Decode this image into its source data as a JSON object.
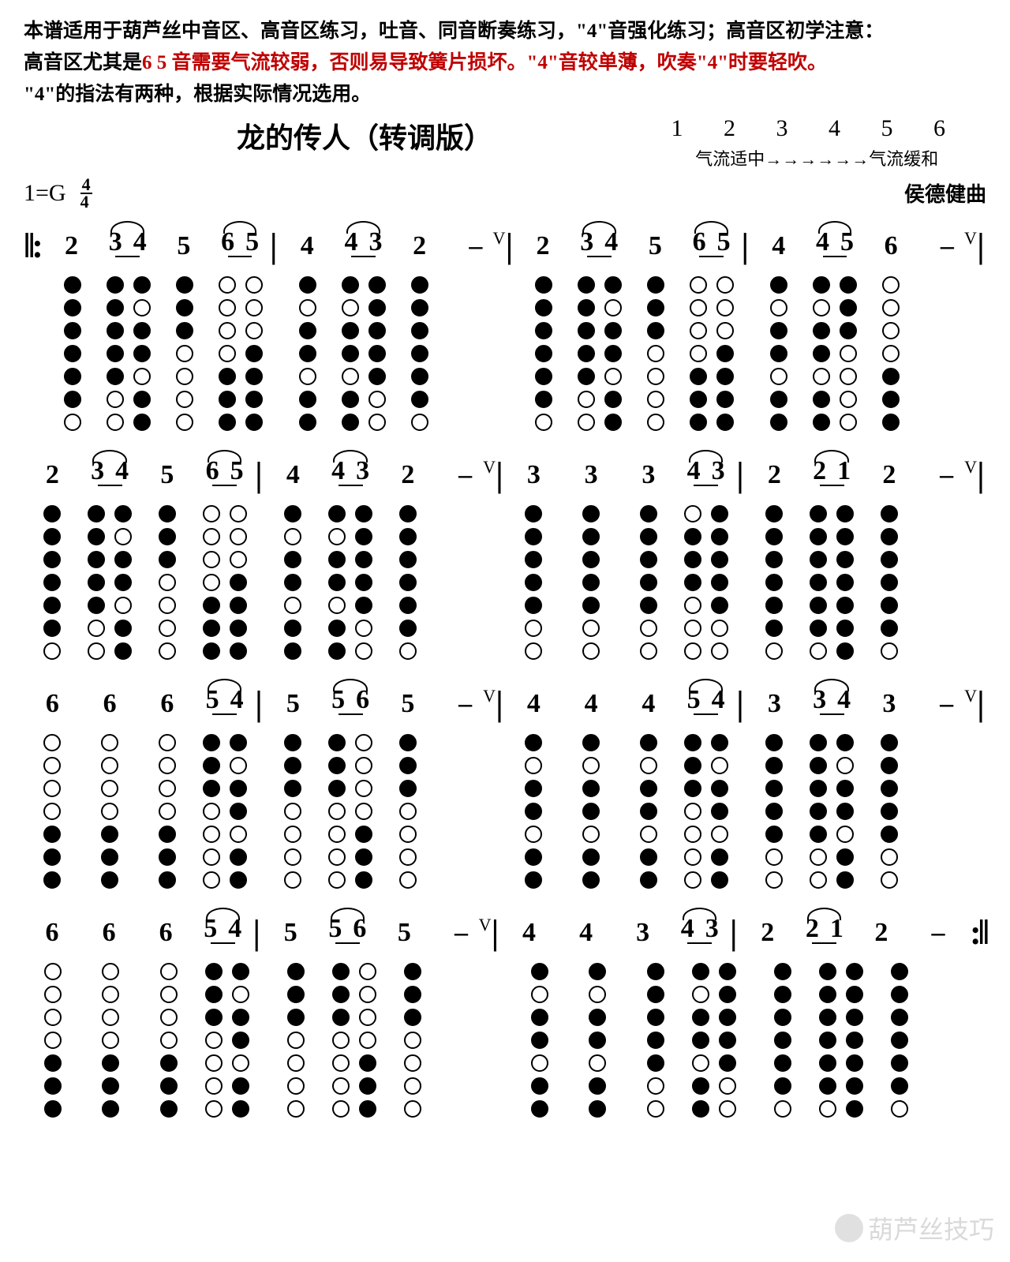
{
  "intro": {
    "line1a": "本谱适用于葫芦丝中音区、高音区练习，吐音、同音断奏练习，\"4\"音强化练习；高音区初学注意：",
    "line2_black1": "高音区尤其是",
    "line2_red": "6 5 音需要气流较弱，否则易导致簧片损坏。\"4\"音较单薄，吹奏\"4\"时要轻吹。",
    "line3": "\"4\"的指法有两种，根据实际情况选用。"
  },
  "title": "龙的传人（转调版）",
  "scale_nums": "1 2 3 4 5 6",
  "scale_text": "气流适中→→→→→→气流缓和",
  "key": "1=G",
  "time_top": "4",
  "time_bottom": "4",
  "composer": "侯德健曲",
  "repeat_start": "‖:",
  "repeat_end": ":‖",
  "bar": "|",
  "dash": "–",
  "breath": "V",
  "watermark": "葫芦丝技巧",
  "fingering_map": {
    "1": [
      1,
      1,
      1,
      1,
      1,
      1,
      1
    ],
    "2": [
      1,
      1,
      1,
      1,
      1,
      1,
      0
    ],
    "3": [
      1,
      1,
      1,
      1,
      1,
      0,
      0
    ],
    "4": [
      1,
      0,
      1,
      1,
      0,
      1,
      1
    ],
    "4b": [
      0,
      1,
      1,
      1,
      0,
      0,
      0
    ],
    "5": [
      1,
      1,
      1,
      0,
      0,
      0,
      0
    ],
    "5h": [
      0,
      0,
      0,
      1,
      1,
      1,
      1
    ],
    "6": [
      1,
      1,
      0,
      0,
      0,
      0,
      0
    ],
    "6h": [
      0,
      0,
      0,
      0,
      1,
      1,
      1
    ]
  },
  "lines": [
    {
      "start_repeat": true,
      "cells": [
        {
          "t": "n",
          "v": "2",
          "f": "2"
        },
        {
          "t": "p",
          "a": "3",
          "b": "4",
          "fa": "3",
          "fb": "4",
          "tie": true,
          "ul": true
        },
        {
          "t": "n",
          "v": "5",
          "f": "5"
        },
        {
          "t": "p",
          "a": "6",
          "b": "5",
          "fa": "6h",
          "fb": "5h",
          "tie": true,
          "ul": true
        },
        {
          "t": "bar"
        },
        {
          "t": "n",
          "v": "4",
          "f": "4"
        },
        {
          "t": "p",
          "a": "4",
          "b": "3",
          "fa": "4",
          "fb": "3",
          "tie": true,
          "ul": true
        },
        {
          "t": "n",
          "v": "2",
          "f": "2"
        },
        {
          "t": "d",
          "breath": true
        },
        {
          "t": "bar"
        },
        {
          "t": "n",
          "v": "2",
          "f": "2"
        },
        {
          "t": "p",
          "a": "3",
          "b": "4",
          "fa": "3",
          "fb": "4",
          "tie": true,
          "ul": true
        },
        {
          "t": "n",
          "v": "5",
          "f": "5"
        },
        {
          "t": "p",
          "a": "6",
          "b": "5",
          "fa": "6h",
          "fb": "5h",
          "tie": true,
          "ul": true
        },
        {
          "t": "bar"
        },
        {
          "t": "n",
          "v": "4",
          "f": "4"
        },
        {
          "t": "p",
          "a": "4",
          "b": "5",
          "fa": "4",
          "fb": "5",
          "tie": true,
          "ul": true
        },
        {
          "t": "n",
          "v": "6",
          "f": "6h"
        },
        {
          "t": "d",
          "breath": true
        },
        {
          "t": "bar"
        }
      ]
    },
    {
      "cells": [
        {
          "t": "n",
          "v": "2",
          "f": "2"
        },
        {
          "t": "p",
          "a": "3",
          "b": "4",
          "fa": "3",
          "fb": "4",
          "tie": true,
          "ul": true
        },
        {
          "t": "n",
          "v": "5",
          "f": "5"
        },
        {
          "t": "p",
          "a": "6",
          "b": "5",
          "fa": "6h",
          "fb": "5h",
          "tie": true,
          "ul": true
        },
        {
          "t": "bar"
        },
        {
          "t": "n",
          "v": "4",
          "f": "4"
        },
        {
          "t": "p",
          "a": "4",
          "b": "3",
          "fa": "4",
          "fb": "3",
          "tie": true,
          "ul": true
        },
        {
          "t": "n",
          "v": "2",
          "f": "2"
        },
        {
          "t": "d",
          "breath": true
        },
        {
          "t": "bar"
        },
        {
          "t": "n",
          "v": "3",
          "f": "3"
        },
        {
          "t": "n",
          "v": "3",
          "f": "3"
        },
        {
          "t": "n",
          "v": "3",
          "f": "3"
        },
        {
          "t": "p",
          "a": "4",
          "b": "3",
          "fa": "4b",
          "fb": "3",
          "tie": true,
          "ul": true
        },
        {
          "t": "bar"
        },
        {
          "t": "n",
          "v": "2",
          "f": "2"
        },
        {
          "t": "p",
          "a": "2",
          "b": "1",
          "fa": "2",
          "fb": "1",
          "tie": true,
          "ul": true
        },
        {
          "t": "n",
          "v": "2",
          "f": "2"
        },
        {
          "t": "d",
          "breath": true
        },
        {
          "t": "bar"
        }
      ]
    },
    {
      "cells": [
        {
          "t": "n",
          "v": "6",
          "f": "6h"
        },
        {
          "t": "n",
          "v": "6",
          "f": "6h"
        },
        {
          "t": "n",
          "v": "6",
          "f": "6h"
        },
        {
          "t": "p",
          "a": "5",
          "b": "4",
          "fa": "5",
          "fb": "4",
          "tie": true,
          "ul": true
        },
        {
          "t": "bar"
        },
        {
          "t": "n",
          "v": "5",
          "f": "5"
        },
        {
          "t": "p",
          "a": "5",
          "b": "6",
          "fa": "5",
          "fb": "6h",
          "tie": true,
          "ul": true
        },
        {
          "t": "n",
          "v": "5",
          "f": "5"
        },
        {
          "t": "d",
          "breath": true
        },
        {
          "t": "bar"
        },
        {
          "t": "n",
          "v": "4",
          "f": "4"
        },
        {
          "t": "n",
          "v": "4",
          "f": "4"
        },
        {
          "t": "n",
          "v": "4",
          "f": "4"
        },
        {
          "t": "p",
          "a": "5",
          "b": "4",
          "fa": "5",
          "fb": "4",
          "tie": true,
          "ul": true
        },
        {
          "t": "bar"
        },
        {
          "t": "n",
          "v": "3",
          "f": "3"
        },
        {
          "t": "p",
          "a": "3",
          "b": "4",
          "fa": "3",
          "fb": "4",
          "tie": true,
          "ul": true
        },
        {
          "t": "n",
          "v": "3",
          "f": "3"
        },
        {
          "t": "d",
          "breath": true
        },
        {
          "t": "bar"
        }
      ]
    },
    {
      "end_repeat": true,
      "cells": [
        {
          "t": "n",
          "v": "6",
          "f": "6h"
        },
        {
          "t": "n",
          "v": "6",
          "f": "6h"
        },
        {
          "t": "n",
          "v": "6",
          "f": "6h"
        },
        {
          "t": "p",
          "a": "5",
          "b": "4",
          "fa": "5",
          "fb": "4",
          "tie": true,
          "ul": true
        },
        {
          "t": "bar"
        },
        {
          "t": "n",
          "v": "5",
          "f": "5"
        },
        {
          "t": "p",
          "a": "5",
          "b": "6",
          "fa": "5",
          "fb": "6h",
          "tie": true,
          "ul": true
        },
        {
          "t": "n",
          "v": "5",
          "f": "5"
        },
        {
          "t": "d",
          "breath": true
        },
        {
          "t": "bar"
        },
        {
          "t": "n",
          "v": "4",
          "f": "4"
        },
        {
          "t": "n",
          "v": "4",
          "f": "4"
        },
        {
          "t": "n",
          "v": "3",
          "f": "3"
        },
        {
          "t": "p",
          "a": "4",
          "b": "3",
          "fa": "4",
          "fb": "3",
          "tie": true,
          "ul": true
        },
        {
          "t": "bar"
        },
        {
          "t": "n",
          "v": "2",
          "f": "2"
        },
        {
          "t": "p",
          "a": "2",
          "b": "1",
          "fa": "2",
          "fb": "1",
          "tie": true,
          "ul": true
        },
        {
          "t": "n",
          "v": "2",
          "f": "2"
        },
        {
          "t": "d"
        }
      ]
    }
  ]
}
